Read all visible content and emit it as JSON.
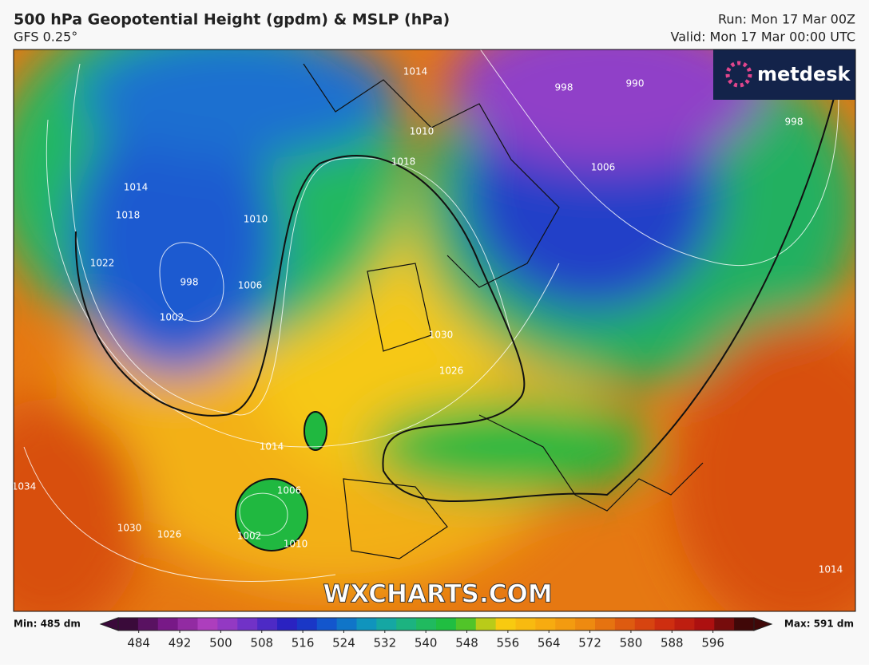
{
  "header": {
    "title": "500 hPa Geopotential Height (gpdm) & MSLP (hPa)",
    "subtitle": "GFS 0.25°",
    "run": "Run: Mon 17 Mar 00Z",
    "valid": "Valid: Mon 17 Mar 00:00 UTC"
  },
  "logo": "metdesk",
  "watermark": "WXCHARTS.COM",
  "isobar_labels": [
    "998",
    "1002",
    "1006",
    "1010",
    "1014",
    "1018",
    "1022",
    "1030",
    "1026",
    "1014",
    "1006",
    "1002",
    "1010",
    "1034",
    "1030",
    "1026",
    "990",
    "998",
    "1006",
    "998",
    "1010",
    "1014",
    "1018",
    "1014"
  ],
  "legend": {
    "min": "Min: 485 dm",
    "max": "Max: 591 dm",
    "range": [
      480,
      604
    ],
    "ticks": [
      484,
      492,
      500,
      508,
      516,
      524,
      532,
      540,
      548,
      556,
      564,
      572,
      580,
      588,
      596
    ],
    "colors": [
      "#3a0a3a",
      "#7a1a8a",
      "#b040c0",
      "#6a30c8",
      "#2020c0",
      "#1060d0",
      "#10a0b8",
      "#20b870",
      "#20c030",
      "#f8d010",
      "#f8b010",
      "#f09010",
      "#e06010",
      "#d03010",
      "#b01010",
      "#400808"
    ]
  }
}
